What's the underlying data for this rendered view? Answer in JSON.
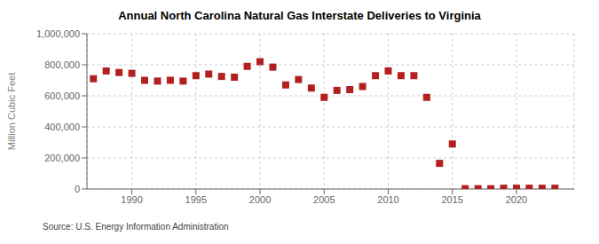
{
  "chart_data": {
    "type": "scatter",
    "title": "Annual North Carolina Natural Gas Interstate Deliveries to Virginia",
    "ylabel": "Million Cubic Feet",
    "annotations": [
      "Source: U.S. Energy Information Administration"
    ],
    "x": [
      1987,
      1988,
      1989,
      1990,
      1991,
      1992,
      1993,
      1994,
      1995,
      1996,
      1997,
      1998,
      1999,
      2000,
      2001,
      2002,
      2003,
      2004,
      2005,
      2006,
      2007,
      2008,
      2009,
      2010,
      2011,
      2012,
      2013,
      2014,
      2015,
      2016,
      2017,
      2018,
      2019,
      2020,
      2021,
      2022,
      2023
    ],
    "values": [
      710000,
      760000,
      750000,
      745000,
      700000,
      695000,
      700000,
      695000,
      730000,
      740000,
      725000,
      720000,
      790000,
      820000,
      785000,
      670000,
      705000,
      650000,
      590000,
      635000,
      640000,
      660000,
      730000,
      760000,
      730000,
      730000,
      590000,
      165000,
      290000,
      2000,
      2000,
      2000,
      5000,
      5000,
      5000,
      5000,
      5000
    ],
    "color": "#b22020",
    "marker": "square",
    "xlim": [
      1986.5,
      2024.5
    ],
    "xticks": [
      1990,
      1995,
      2000,
      2005,
      2010,
      2015,
      2020
    ],
    "ylim": [
      0,
      1000000
    ],
    "yticks": [
      0,
      {
        "value": 200000,
        "label": "200,000"
      },
      {
        "value": 400000,
        "label": "400,000"
      },
      {
        "value": 600000,
        "label": "600,000"
      },
      {
        "value": 800000,
        "label": "800,000"
      },
      {
        "value": 1000000,
        "label": "1,000,000"
      }
    ],
    "grid": true
  }
}
